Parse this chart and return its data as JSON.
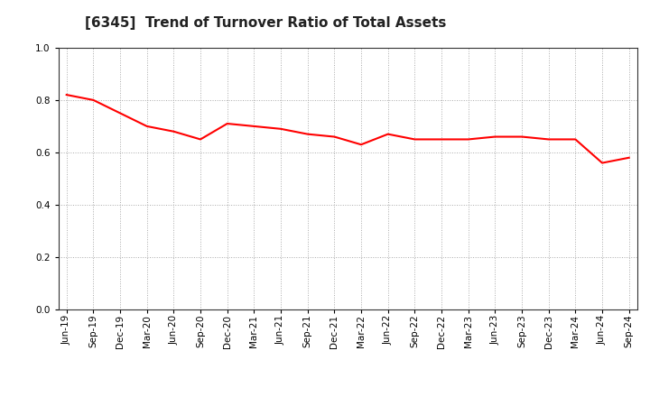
{
  "title": "[6345]  Trend of Turnover Ratio of Total Assets",
  "x_labels": [
    "Jun-19",
    "Sep-19",
    "Dec-19",
    "Mar-20",
    "Jun-20",
    "Sep-20",
    "Dec-20",
    "Mar-21",
    "Jun-21",
    "Sep-21",
    "Dec-21",
    "Mar-22",
    "Jun-22",
    "Sep-22",
    "Dec-22",
    "Mar-23",
    "Jun-23",
    "Sep-23",
    "Dec-23",
    "Mar-24",
    "Jun-24",
    "Sep-24"
  ],
  "values": [
    0.82,
    0.8,
    0.75,
    0.7,
    0.68,
    0.65,
    0.71,
    0.7,
    0.69,
    0.67,
    0.66,
    0.63,
    0.67,
    0.65,
    0.65,
    0.65,
    0.66,
    0.66,
    0.65,
    0.65,
    0.56,
    0.58
  ],
  "line_color": "#FF0000",
  "line_width": 1.5,
  "ylim": [
    0.0,
    1.0
  ],
  "yticks": [
    0.0,
    0.2,
    0.4,
    0.6,
    0.8,
    1.0
  ],
  "background_color": "#FFFFFF",
  "plot_bg_color": "#FFFFFF",
  "grid_color": "#AAAAAA",
  "title_fontsize": 11,
  "tick_fontsize": 7.5
}
